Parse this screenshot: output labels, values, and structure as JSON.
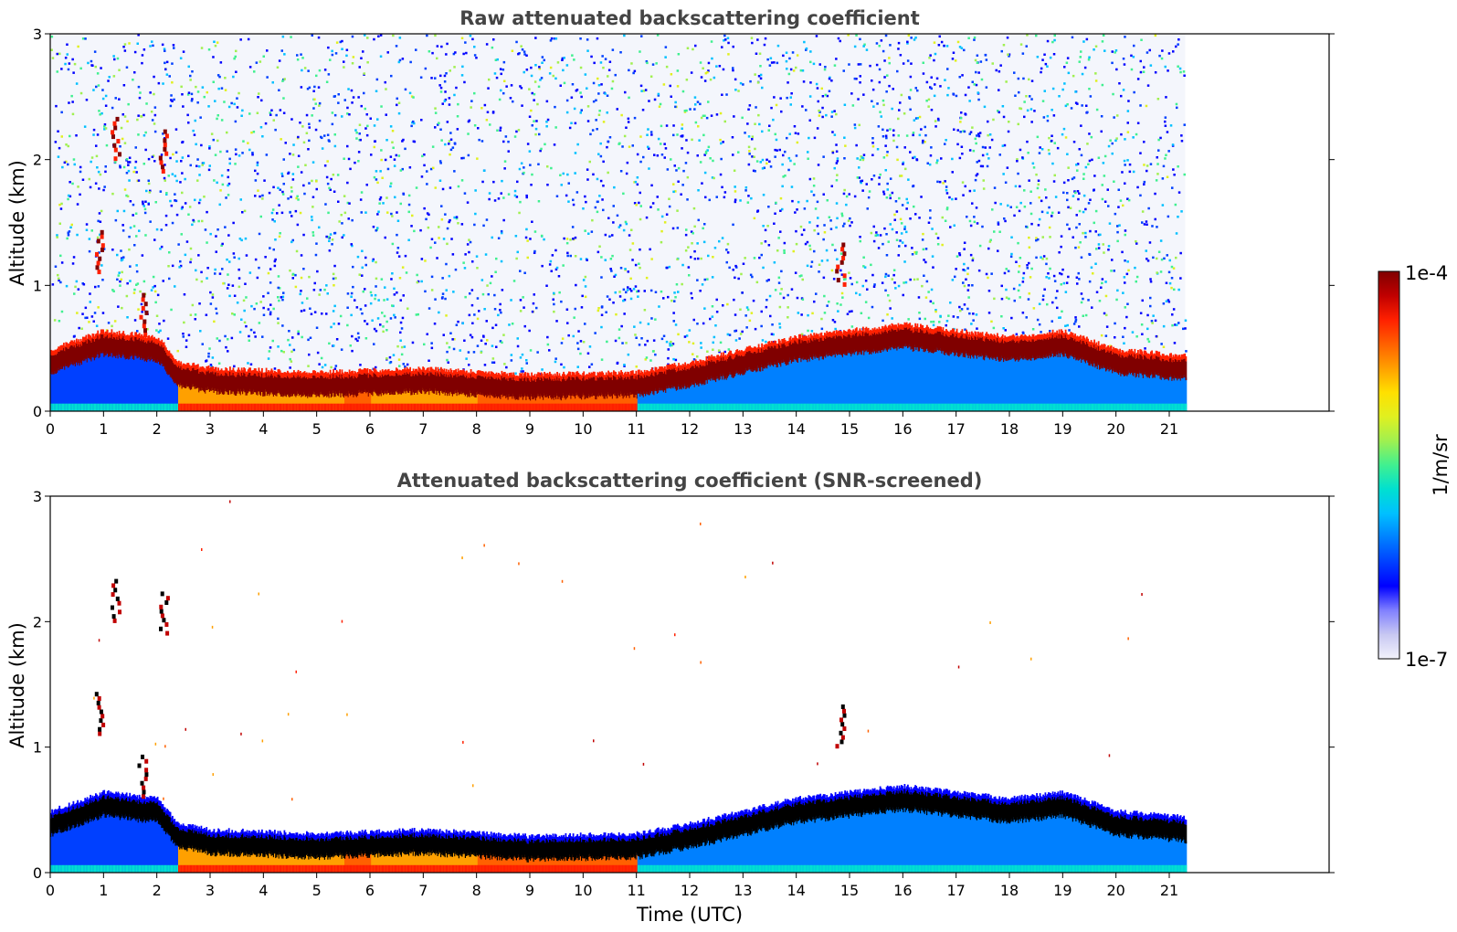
{
  "chart_data": [
    {
      "type": "heatmap",
      "title": "Raw attenuated backscattering coefficient",
      "xlabel": "",
      "ylabel": "Altitude (km)",
      "xlim": [
        0,
        24
      ],
      "ylim": [
        0,
        3
      ],
      "x_ticks": [
        0,
        1,
        2,
        3,
        4,
        5,
        6,
        7,
        8,
        9,
        10,
        11,
        12,
        13,
        14,
        15,
        16,
        17,
        18,
        19,
        20,
        21
      ],
      "y_ticks": [
        0,
        1,
        2,
        3
      ],
      "data_extent_x": [
        0,
        21.3
      ],
      "grid": false,
      "boundary_layer_top_km": {
        "time": [
          0,
          1,
          2,
          2.4,
          3,
          5,
          7,
          9,
          11,
          12,
          13,
          14,
          15,
          16,
          17,
          18,
          19,
          20,
          21.3
        ],
        "altitude": [
          0.4,
          0.55,
          0.5,
          0.3,
          0.25,
          0.22,
          0.25,
          0.2,
          0.22,
          0.3,
          0.4,
          0.5,
          0.55,
          0.6,
          0.55,
          0.5,
          0.55,
          0.4,
          0.35
        ]
      },
      "elevated_layers_km": [
        {
          "time": 0.9,
          "altitude": 1.3
        },
        {
          "time": 1.2,
          "altitude": 2.2
        },
        {
          "time": 1.7,
          "altitude": 0.8
        },
        {
          "time": 2.1,
          "altitude": 2.1
        },
        {
          "time": 14.8,
          "altitude": 1.2
        }
      ]
    },
    {
      "type": "heatmap",
      "title": "Attenuated backscattering coefficient (SNR-screened)",
      "xlabel": "Time (UTC)",
      "ylabel": "Altitude (km)",
      "xlim": [
        0,
        24
      ],
      "ylim": [
        0,
        3
      ],
      "x_ticks": [
        0,
        1,
        2,
        3,
        4,
        5,
        6,
        7,
        8,
        9,
        10,
        11,
        12,
        13,
        14,
        15,
        16,
        17,
        18,
        19,
        20,
        21
      ],
      "y_ticks": [
        0,
        1,
        2,
        3
      ],
      "data_extent_x": [
        0,
        21.3
      ],
      "grid": false
    }
  ],
  "colorbar": {
    "label": "1/m/sr",
    "min_label": "1e-7",
    "max_label": "1e-4",
    "colors": [
      "#f2f2fb",
      "#c8c8f2",
      "#8080ff",
      "#0000ff",
      "#0040ff",
      "#0080ff",
      "#00c0ff",
      "#00e0d0",
      "#40f090",
      "#a0f050",
      "#e0f020",
      "#ffe000",
      "#ffa000",
      "#ff6000",
      "#ff2000",
      "#c00000",
      "#800000"
    ]
  }
}
